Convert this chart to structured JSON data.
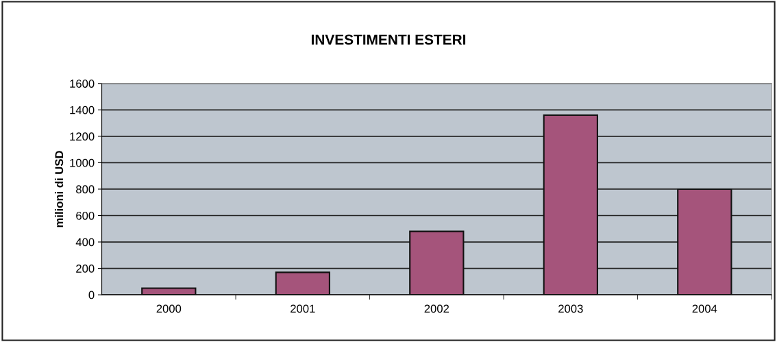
{
  "chart_data": {
    "type": "bar",
    "title": "INVESTIMENTI ESTERI",
    "ylabel": "milioni di USD",
    "categories": [
      "2000",
      "2001",
      "2002",
      "2003",
      "2004"
    ],
    "values": [
      50,
      170,
      480,
      1360,
      800
    ],
    "color": "#a5547b",
    "ylim": [
      0,
      1600
    ],
    "yticks": [
      0,
      200,
      400,
      600,
      800,
      1000,
      1200,
      1400,
      1600
    ],
    "grid": "y"
  }
}
